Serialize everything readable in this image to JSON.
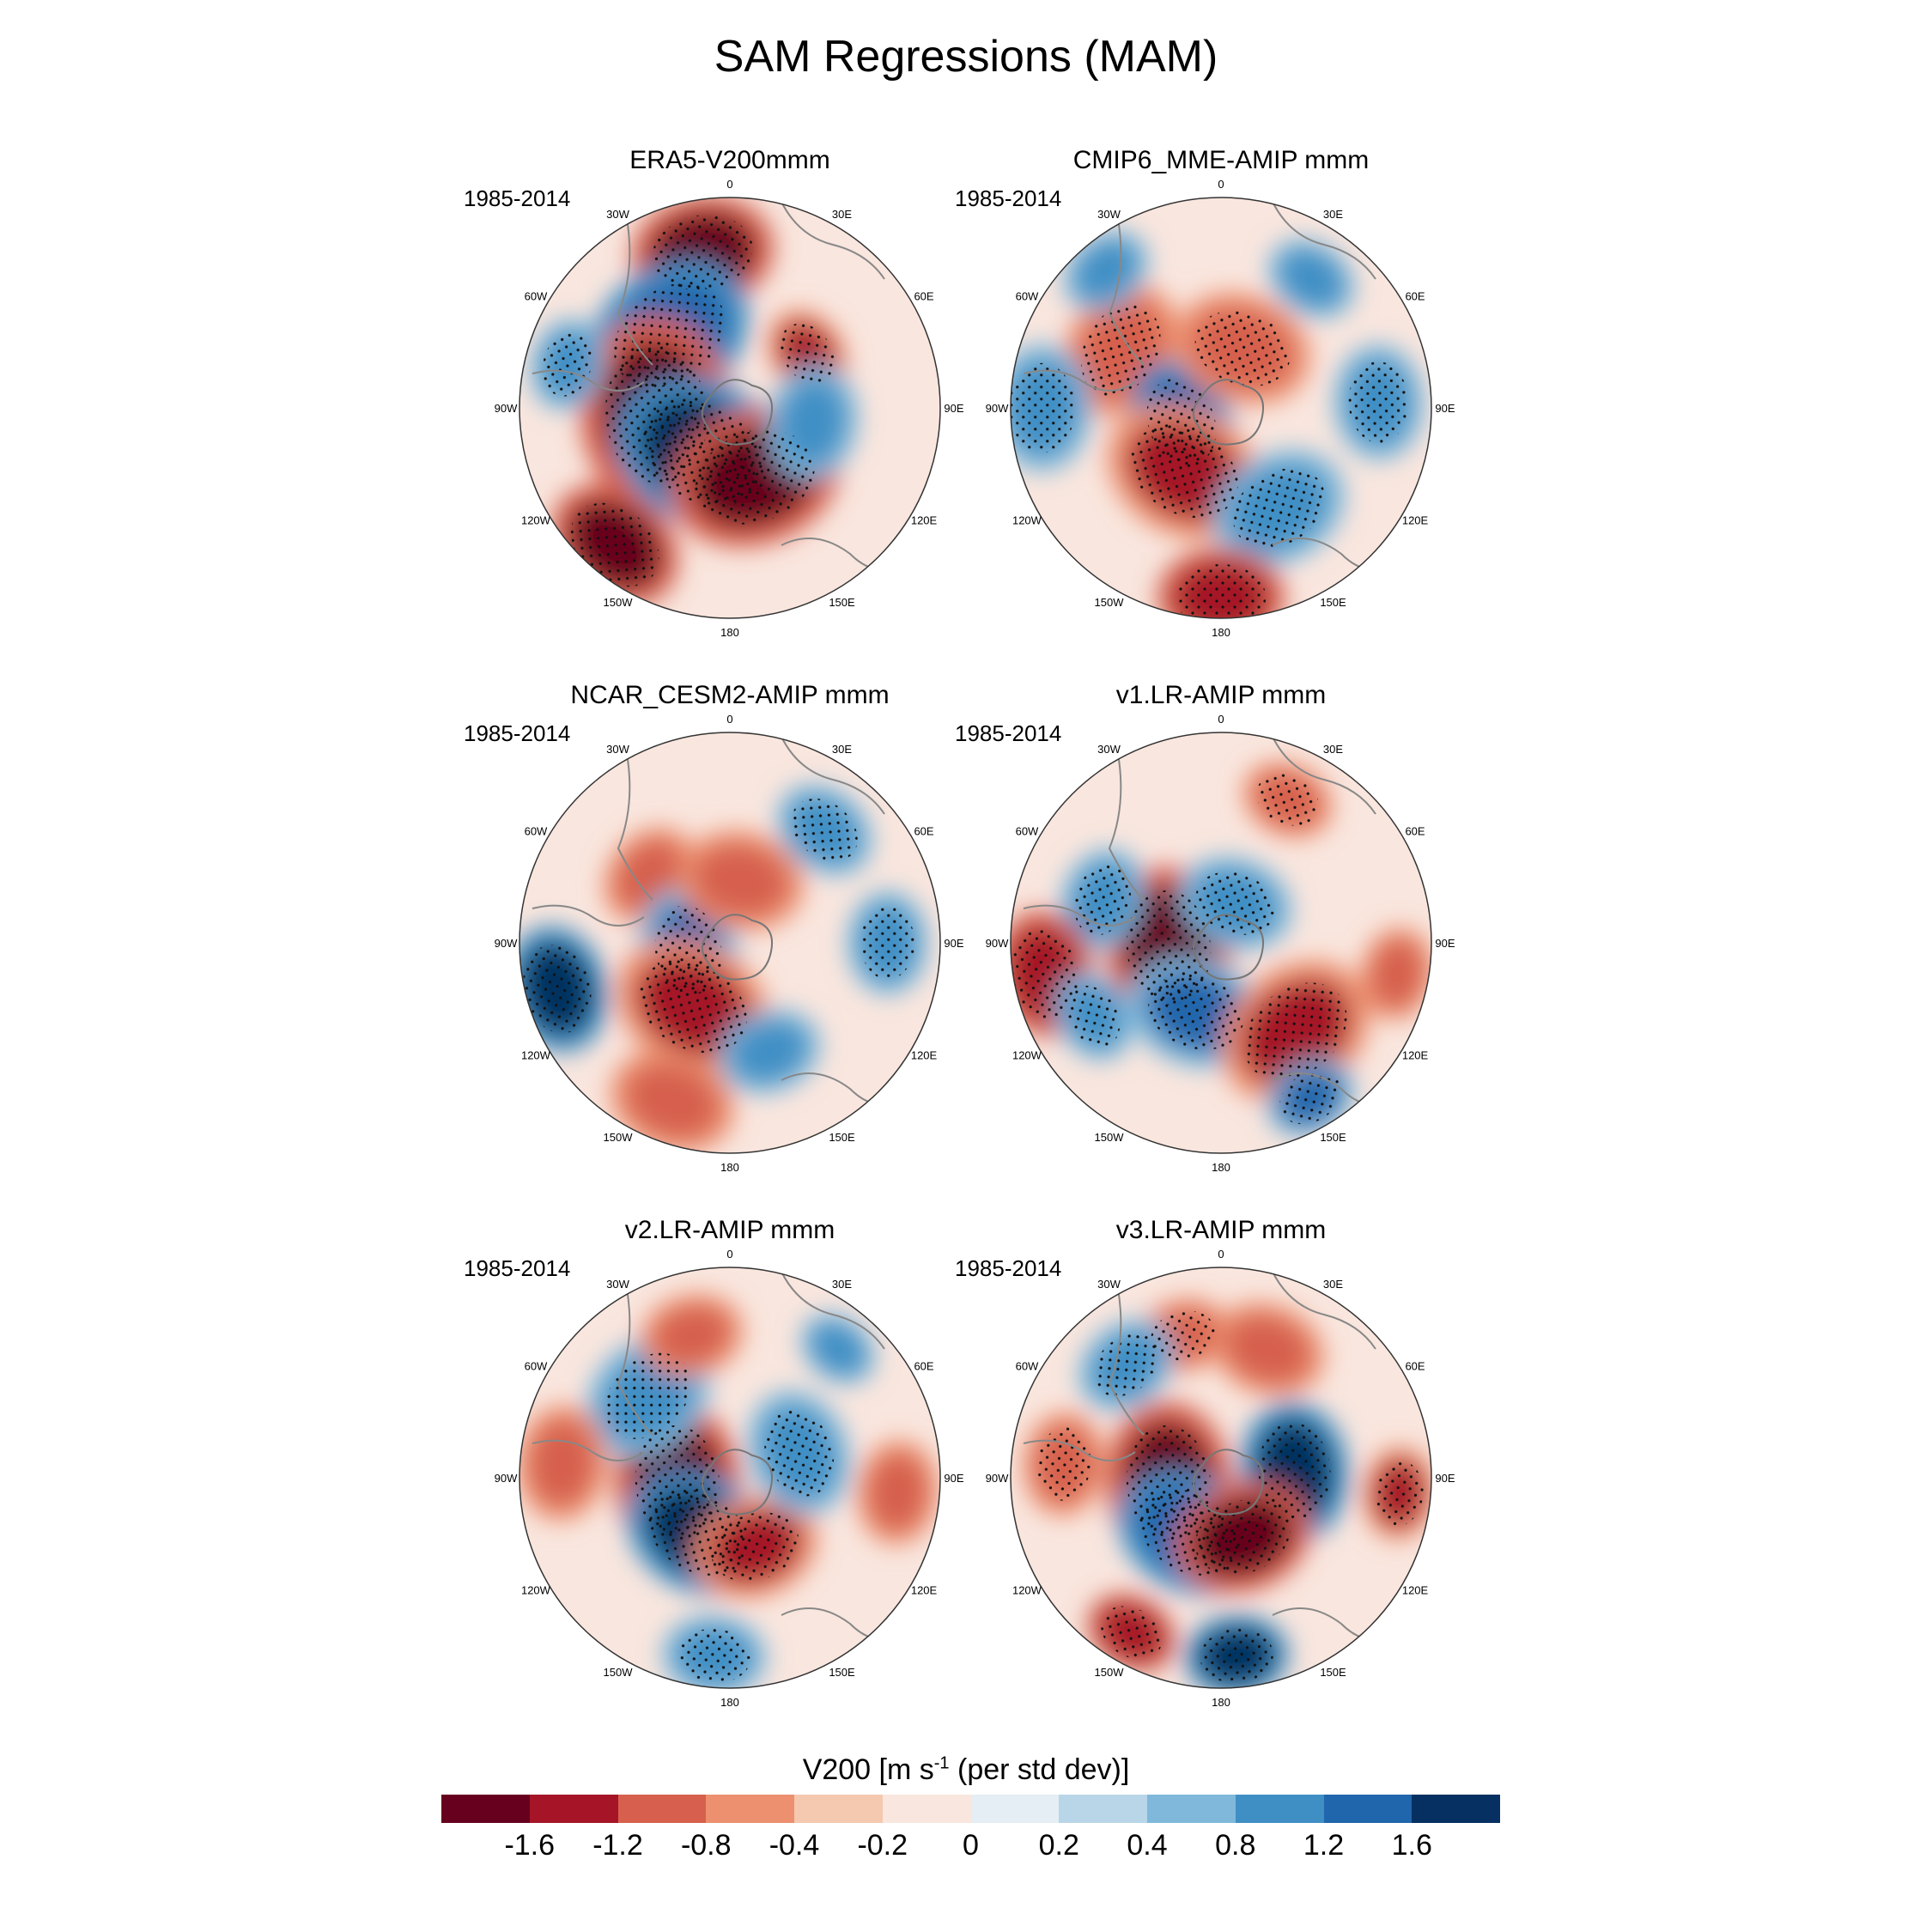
{
  "title": "SAM Regressions (MAM)",
  "panels": [
    {
      "id": "era5",
      "title": "ERA5-V200mmm",
      "period": "1985-2014"
    },
    {
      "id": "cmip6",
      "title": "CMIP6_MME-AMIP  mmm",
      "period": "1985-2014"
    },
    {
      "id": "ncar",
      "title": "NCAR_CESM2-AMIP  mmm",
      "period": "1985-2014"
    },
    {
      "id": "v1",
      "title": "v1.LR-AMIP  mmm",
      "period": "1985-2014"
    },
    {
      "id": "v2",
      "title": "v2.LR-AMIP  mmm",
      "period": "1985-2014"
    },
    {
      "id": "v3",
      "title": "v3.LR-AMIP  mmm",
      "period": "1985-2014"
    }
  ],
  "longitude_labels": [
    "0",
    "30E",
    "60E",
    "90E",
    "120E",
    "150E",
    "180",
    "150W",
    "120W",
    "90W",
    "60W",
    "30W"
  ],
  "colorbar": {
    "title": "V200 [m s",
    "title_exp": "-1",
    "title_tail": " (per std dev)]",
    "colors": [
      "#67001f",
      "#a51527",
      "#d6604d",
      "#ec9070",
      "#f5c8b0",
      "#f9e6de",
      "#e4eef4",
      "#b8d6e8",
      "#7fb8da",
      "#3f8fc5",
      "#2066ac",
      "#053061"
    ],
    "ticks": [
      "-1.6",
      "-1.2",
      "-0.8",
      "-0.4",
      "-0.2",
      "0",
      "0.2",
      "0.4",
      "0.8",
      "1.2",
      "1.6"
    ]
  },
  "map_data": {
    "type": "filled-contour polar stereographic",
    "variable": "V200",
    "units": "m s-1 per std dev",
    "stippling": "significance"
  }
}
